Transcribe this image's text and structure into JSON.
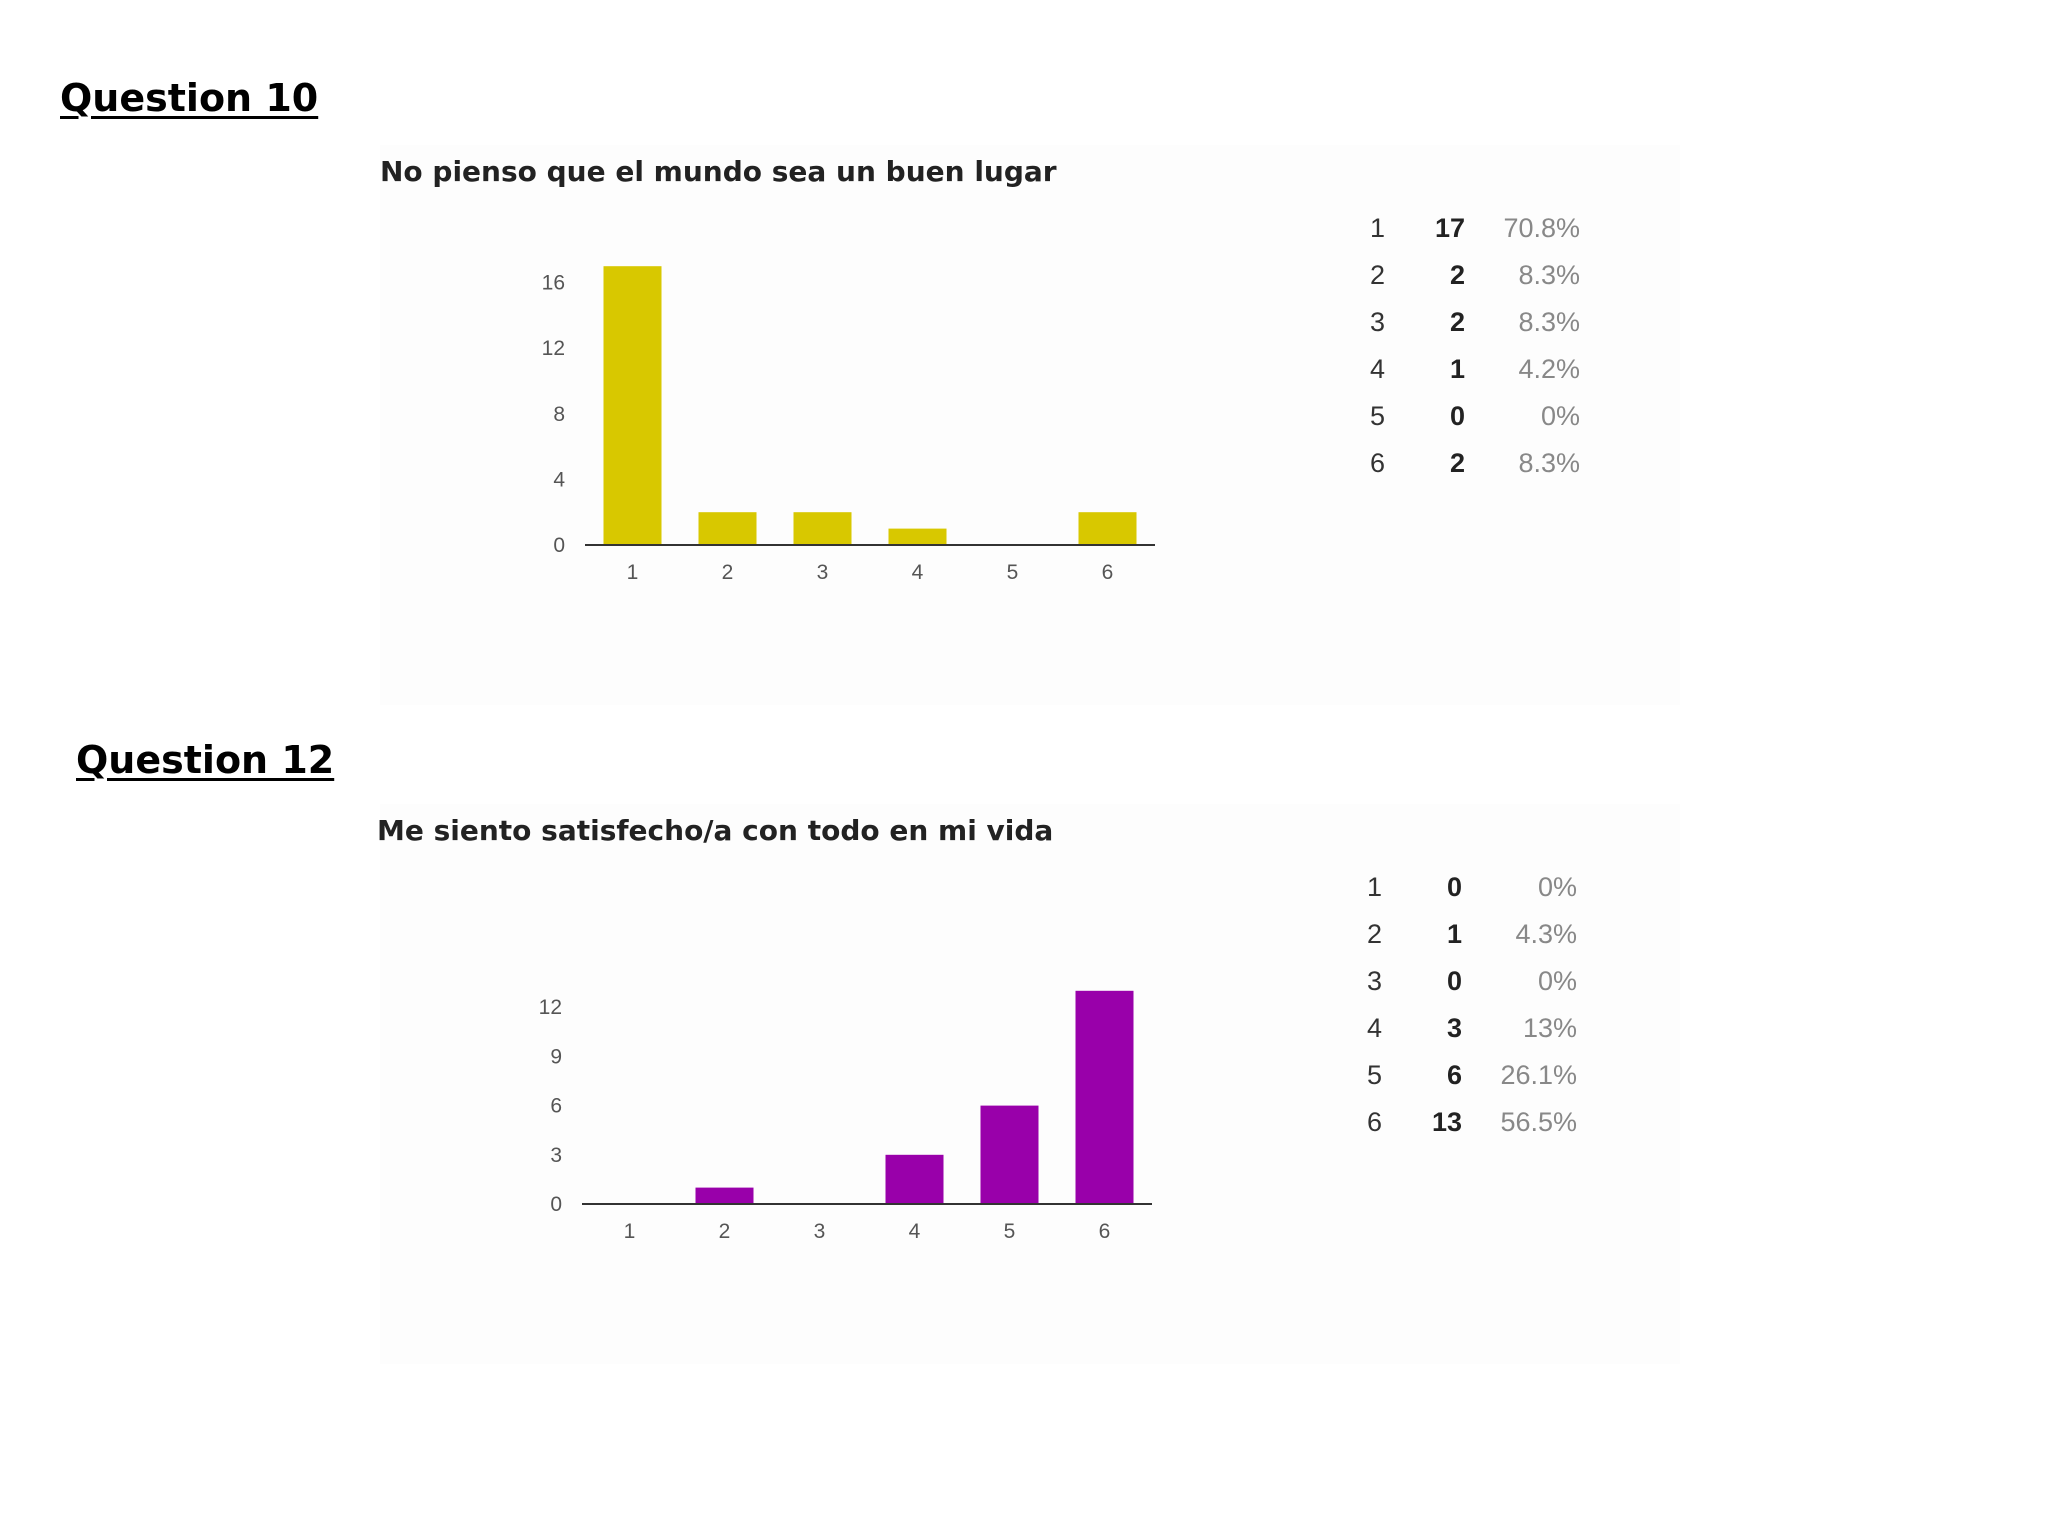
{
  "questions": [
    {
      "heading": "Question 10",
      "title": "No pienso que el mundo sea un buen lugar",
      "rows": [
        {
          "cat": "1",
          "count": "17",
          "pct": "70.8%"
        },
        {
          "cat": "2",
          "count": "2",
          "pct": "8.3%"
        },
        {
          "cat": "3",
          "count": "2",
          "pct": "8.3%"
        },
        {
          "cat": "4",
          "count": "1",
          "pct": "4.2%"
        },
        {
          "cat": "5",
          "count": "0",
          "pct": "0%"
        },
        {
          "cat": "6",
          "count": "2",
          "pct": "8.3%"
        }
      ]
    },
    {
      "heading": "Question 12",
      "title": "Me siento satisfecho/a con todo en mi vida",
      "rows": [
        {
          "cat": "1",
          "count": "0",
          "pct": "0%"
        },
        {
          "cat": "2",
          "count": "1",
          "pct": "4.3%"
        },
        {
          "cat": "3",
          "count": "0",
          "pct": "0%"
        },
        {
          "cat": "4",
          "count": "3",
          "pct": "13%"
        },
        {
          "cat": "5",
          "count": "6",
          "pct": "26.1%"
        },
        {
          "cat": "6",
          "count": "13",
          "pct": "56.5%"
        }
      ]
    }
  ],
  "chart_data": [
    {
      "type": "bar",
      "title": "No pienso que el mundo sea un buen lugar",
      "categories": [
        "1",
        "2",
        "3",
        "4",
        "5",
        "6"
      ],
      "values": [
        17,
        2,
        2,
        1,
        0,
        2
      ],
      "yticks": [
        0,
        4,
        8,
        12,
        16
      ],
      "ylim": [
        0,
        17
      ],
      "color": "#d8c800",
      "grid": false,
      "legend": "none"
    },
    {
      "type": "bar",
      "title": "Me siento satisfecho/a con todo en mi vida",
      "categories": [
        "1",
        "2",
        "3",
        "4",
        "5",
        "6"
      ],
      "values": [
        0,
        1,
        0,
        3,
        6,
        13
      ],
      "yticks": [
        0,
        3,
        6,
        9,
        12
      ],
      "ylim": [
        0,
        13
      ],
      "color": "#9900aa",
      "grid": false,
      "legend": "none"
    }
  ]
}
